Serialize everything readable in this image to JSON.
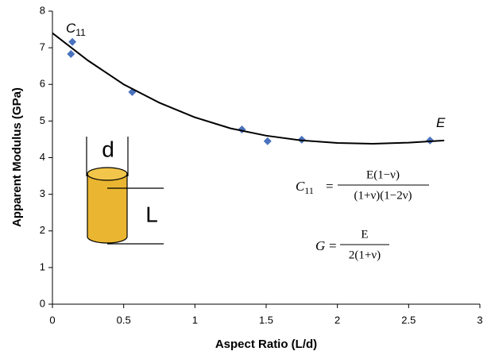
{
  "chart_data": {
    "type": "scatter",
    "xlabel": "Aspect Ratio (L/d)",
    "ylabel": "Apparent Modulus (GPa)",
    "xlim": [
      0,
      3
    ],
    "xticks": [
      0,
      0.5,
      1,
      1.5,
      2,
      2.5,
      3
    ],
    "ylim": [
      0,
      8
    ],
    "yticks": [
      0,
      1,
      2,
      3,
      4,
      5,
      6,
      7,
      8
    ],
    "series": [
      {
        "type": "scatter",
        "color": "#4a72bd",
        "x": [
          0.13,
          0.14,
          0.56,
          1.33,
          1.51,
          1.75,
          2.65
        ],
        "values": [
          6.83,
          7.16,
          5.79,
          4.77,
          4.45,
          4.49,
          4.47
        ]
      },
      {
        "type": "line",
        "color": "#000000",
        "x": [
          0,
          0.25,
          0.5,
          0.75,
          1,
          1.25,
          1.5,
          1.75,
          2,
          2.25,
          2.5,
          2.75
        ],
        "values": [
          7.4,
          6.65,
          6.0,
          5.5,
          5.1,
          4.8,
          4.6,
          4.47,
          4.4,
          4.38,
          4.41,
          4.47
        ]
      }
    ],
    "annotations": [
      {
        "text": "C",
        "sub": "11"
      },
      {
        "text": "E"
      }
    ],
    "formulas": [
      {
        "lhs": "C",
        "lhs_sub": "11",
        "eq": "=",
        "numerator": "E(1−ν)",
        "denominator": "(1+ν)(1−2ν)"
      },
      {
        "lhs": "G",
        "eq": "=",
        "numerator": "E",
        "denominator": "2(1+ν)"
      }
    ],
    "inset": {
      "diameter_label": "d",
      "length_label": "L"
    }
  }
}
